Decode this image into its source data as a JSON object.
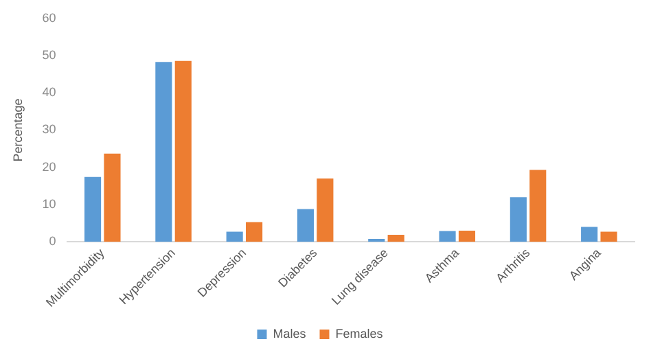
{
  "chart_data": {
    "type": "bar",
    "ylabel": "Percentage",
    "categories": [
      "Multimorbidity",
      "Hypertension",
      "Depression",
      "Diabetes",
      "Lung disease",
      "Asthma",
      "Arthritis",
      "Angina"
    ],
    "series": [
      {
        "name": "Males",
        "color": "#5b9bd5",
        "values": [
          17.4,
          48.3,
          2.7,
          8.8,
          0.8,
          2.9,
          12.0,
          4.0
        ]
      },
      {
        "name": "Females",
        "color": "#ed7d31",
        "values": [
          23.7,
          48.6,
          5.3,
          17.0,
          1.9,
          3.0,
          19.3,
          2.7
        ]
      }
    ],
    "ylim": [
      0,
      60
    ],
    "yticks": [
      0,
      10,
      20,
      30,
      40,
      50,
      60
    ],
    "grid": false,
    "legend": "bottom"
  }
}
